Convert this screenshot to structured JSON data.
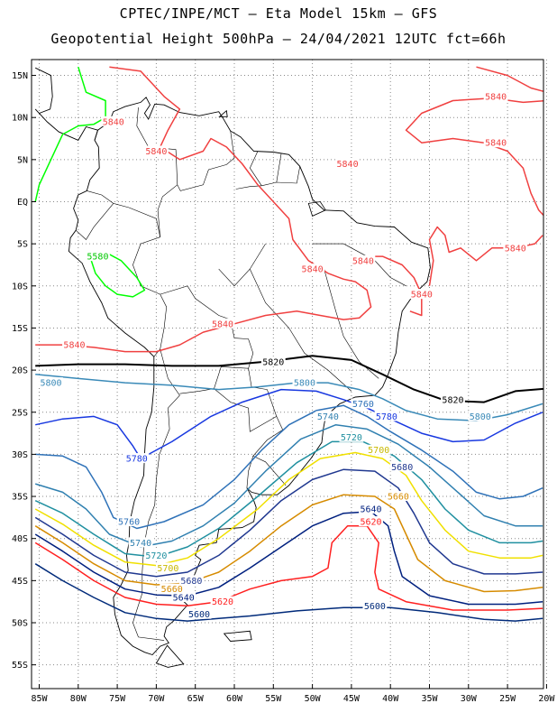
{
  "header": {
    "line1": "CPTEC/INPE/MCT –  Eta Model 15km – GFS",
    "line2": "Geopotential Height 500hPa – 24/04/2021 12UTC fct=66h"
  },
  "axes": {
    "lat_labels": [
      "15N",
      "10N",
      "5N",
      "EQ",
      "5S",
      "10S",
      "15S",
      "20S",
      "25S",
      "30S",
      "35S",
      "40S",
      "45S",
      "50S",
      "55S"
    ],
    "lon_labels": [
      "85W",
      "80W",
      "75W",
      "70W",
      "65W",
      "60W",
      "55W",
      "50W",
      "45W",
      "40W",
      "35W",
      "30W",
      "25W",
      "20W"
    ]
  },
  "map": {
    "lon_range": [
      -85,
      -20
    ],
    "lat_range": [
      -57.5,
      16
    ],
    "grid": "dotted",
    "contours": [
      {
        "level": "5580",
        "color": "#00ff00"
      },
      {
        "level": "5600",
        "color": "#002a7a"
      },
      {
        "level": "5620",
        "color": "#ff2020"
      },
      {
        "level": "5640",
        "color": "#00207f"
      },
      {
        "level": "5660",
        "color": "#d68b00"
      },
      {
        "level": "5680",
        "color": "#203890"
      },
      {
        "level": "5700",
        "color": "#f0e000"
      },
      {
        "level": "5720",
        "color": "#2090a0"
      },
      {
        "level": "5740",
        "color": "#3080b0"
      },
      {
        "level": "5760",
        "color": "#2f72b8"
      },
      {
        "level": "5780",
        "color": "#1838e0"
      },
      {
        "level": "5800",
        "color": "#3a8ab8"
      },
      {
        "level": "5820",
        "color": "#000000"
      },
      {
        "level": "5840",
        "color": "#f04040"
      }
    ],
    "contour_labels": [
      {
        "text": "5580",
        "lon": -77.5,
        "lat": -6.5,
        "color": "#00c800"
      },
      {
        "text": "5840",
        "lon": -45.5,
        "lat": 4.5,
        "color": "#f04040"
      },
      {
        "text": "5840",
        "lon": -75.5,
        "lat": 9.5,
        "color": "#f04040"
      },
      {
        "text": "5840",
        "lon": -70.0,
        "lat": 6.0,
        "color": "#f04040"
      },
      {
        "text": "5840",
        "lon": -50.0,
        "lat": -8.0,
        "color": "#f04040"
      },
      {
        "text": "5840",
        "lon": -43.5,
        "lat": -7.0,
        "color": "#f04040"
      },
      {
        "text": "5840",
        "lon": -26.5,
        "lat": 12.5,
        "color": "#f04040"
      },
      {
        "text": "5840",
        "lon": -26.5,
        "lat": 7.0,
        "color": "#f04040"
      },
      {
        "text": "5840",
        "lon": -24.0,
        "lat": -5.5,
        "color": "#f04040"
      },
      {
        "text": "5840",
        "lon": -36.0,
        "lat": -11.0,
        "color": "#f04040"
      },
      {
        "text": "5840",
        "lon": -61.5,
        "lat": -14.5,
        "color": "#f04040"
      },
      {
        "text": "5840",
        "lon": -80.5,
        "lat": -17.0,
        "color": "#f04040"
      },
      {
        "text": "5820",
        "lon": -55.0,
        "lat": -19.0,
        "color": "#000000"
      },
      {
        "text": "5820",
        "lon": -32.0,
        "lat": -23.5,
        "color": "#000000"
      },
      {
        "text": "5800",
        "lon": -83.5,
        "lat": -21.5,
        "color": "#3a8ab8"
      },
      {
        "text": "5800",
        "lon": -51.0,
        "lat": -21.5,
        "color": "#3a8ab8"
      },
      {
        "text": "5800",
        "lon": -28.5,
        "lat": -25.5,
        "color": "#3a8ab8"
      },
      {
        "text": "5780",
        "lon": -72.5,
        "lat": -30.5,
        "color": "#1838e0"
      },
      {
        "text": "5780",
        "lon": -40.5,
        "lat": -25.5,
        "color": "#1838e0"
      },
      {
        "text": "5760",
        "lon": -43.5,
        "lat": -24.0,
        "color": "#2f72b8"
      },
      {
        "text": "5760",
        "lon": -73.5,
        "lat": -38.0,
        "color": "#2f72b8"
      },
      {
        "text": "5740",
        "lon": -48.0,
        "lat": -25.5,
        "color": "#3080b0"
      },
      {
        "text": "5740",
        "lon": -72.0,
        "lat": -40.5,
        "color": "#3080b0"
      },
      {
        "text": "5720",
        "lon": -45.0,
        "lat": -28.0,
        "color": "#2090a0"
      },
      {
        "text": "5720",
        "lon": -70.0,
        "lat": -42.0,
        "color": "#2090a0"
      },
      {
        "text": "5700",
        "lon": -41.5,
        "lat": -29.5,
        "color": "#c8b800"
      },
      {
        "text": "5700",
        "lon": -68.5,
        "lat": -43.5,
        "color": "#c8b800"
      },
      {
        "text": "5680",
        "lon": -38.5,
        "lat": -31.5,
        "color": "#203890"
      },
      {
        "text": "5680",
        "lon": -65.5,
        "lat": -45.0,
        "color": "#203890"
      },
      {
        "text": "5660",
        "lon": -39.0,
        "lat": -35.0,
        "color": "#d68b00"
      },
      {
        "text": "5660",
        "lon": -68.0,
        "lat": -46.0,
        "color": "#d68b00"
      },
      {
        "text": "5640",
        "lon": -42.5,
        "lat": -36.5,
        "color": "#00207f"
      },
      {
        "text": "5640",
        "lon": -66.5,
        "lat": -47.0,
        "color": "#00207f"
      },
      {
        "text": "5620",
        "lon": -42.5,
        "lat": -38.0,
        "color": "#ff2020"
      },
      {
        "text": "5620",
        "lon": -61.5,
        "lat": -47.5,
        "color": "#ff2020"
      },
      {
        "text": "5600",
        "lon": -64.5,
        "lat": -49.0,
        "color": "#002a7a"
      },
      {
        "text": "5600",
        "lon": -42.0,
        "lat": -48.0,
        "color": "#002a7a"
      }
    ]
  }
}
